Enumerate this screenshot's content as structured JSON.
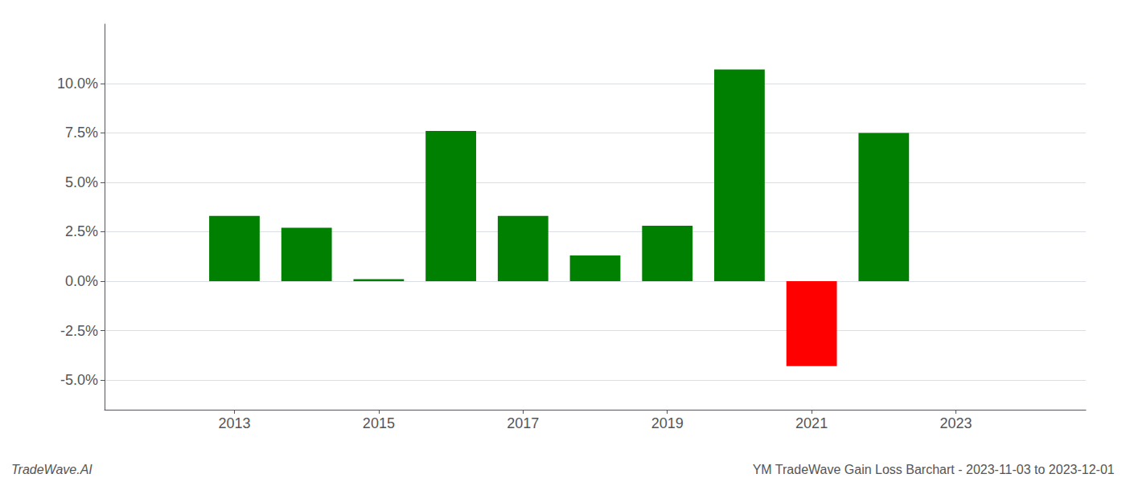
{
  "chart_data": {
    "type": "bar",
    "x": [
      2013,
      2014,
      2015,
      2016,
      2017,
      2018,
      2019,
      2020,
      2021,
      2022
    ],
    "values": [
      0.033,
      0.027,
      0.001,
      0.076,
      0.033,
      0.013,
      0.028,
      0.107,
      -0.043,
      0.075
    ],
    "colors": [
      "#008000",
      "#008000",
      "#008000",
      "#008000",
      "#008000",
      "#008000",
      "#008000",
      "#008000",
      "#ff0000",
      "#008000"
    ],
    "xlim": [
      2011.2,
      2024.8
    ],
    "xticks": [
      2013,
      2015,
      2017,
      2019,
      2021,
      2023
    ],
    "ylim": [
      -0.065,
      0.13
    ],
    "yticks": [
      {
        "value": -0.05,
        "label": "-5.0%"
      },
      {
        "value": -0.025,
        "label": "-2.5%"
      },
      {
        "value": 0.0,
        "label": "0.0%"
      },
      {
        "value": 0.025,
        "label": "2.5%"
      },
      {
        "value": 0.05,
        "label": "5.0%"
      },
      {
        "value": 0.075,
        "label": "7.5%"
      },
      {
        "value": 0.1,
        "label": "10.0%"
      }
    ],
    "grid": true,
    "annotations": [
      "TradeWave.AI",
      "YM TradeWave Gain Loss Barchart - 2023-11-03 to 2023-12-01"
    ]
  }
}
